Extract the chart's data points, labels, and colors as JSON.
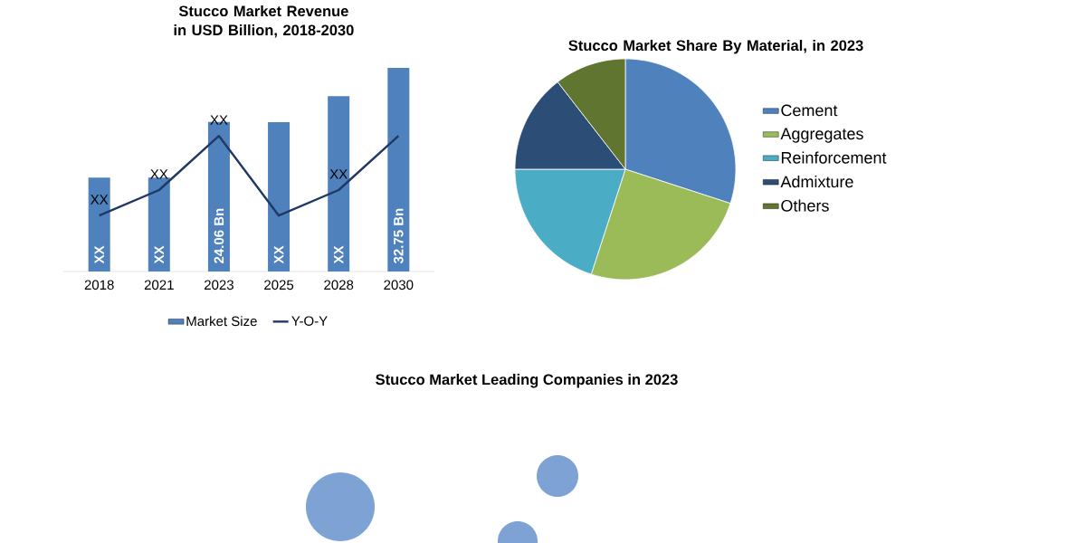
{
  "chart_data": [
    {
      "type": "bar",
      "title": "Stucco Market  Revenue in USD Billion, 2018-2030",
      "categories": [
        "2018",
        "2021",
        "2023",
        "2025",
        "2028",
        "2030"
      ],
      "legend": "bottom",
      "series": [
        {
          "name": "Market Size",
          "color": "#4f81bd",
          "values": [
            15.1,
            15.1,
            24.06,
            24,
            28.2,
            32.75
          ],
          "value_labels": [
            "XX",
            "XX",
            "24.06 Bn",
            "XX",
            "XX",
            "32.75 Bn"
          ]
        },
        {
          "name": "Y-O-Y",
          "type": "line",
          "color": "#1f3864",
          "values": [
            9,
            13.1,
            21.8,
            9,
            13.1,
            21.8
          ],
          "value_labels": [
            "XX",
            "XX",
            "XX",
            null,
            "XX",
            null
          ]
        }
      ]
    },
    {
      "type": "pie",
      "title": "Stucco Market Share By Material, in 2023",
      "legend": "right",
      "categories": [
        "Cement",
        "Aggregates",
        "Reinforcement",
        "Admixture",
        "Others"
      ],
      "values": [
        30,
        25,
        20,
        14.5,
        10.5
      ],
      "colors": [
        "#4f81bd",
        "#9bbb59",
        "#4bacc6",
        "#2c4d75",
        "#5f7530"
      ]
    },
    {
      "type": "other",
      "title": "Stucco Market Leading Companies in 2023"
    }
  ]
}
